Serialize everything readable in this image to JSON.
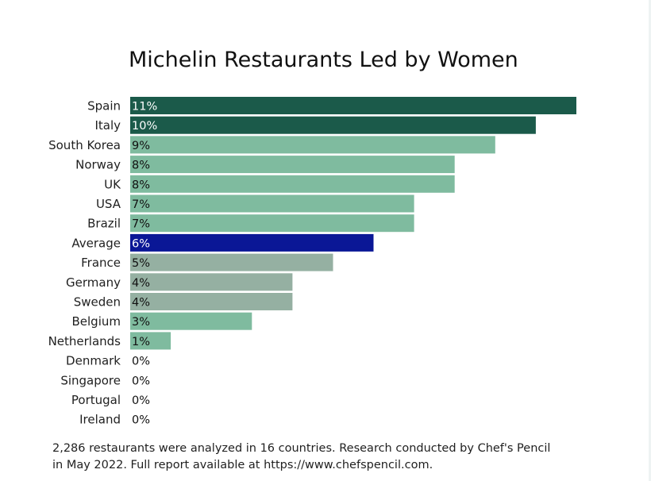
{
  "colors": {
    "leader": "#1b5a4a",
    "country": "#7fbb9f",
    "europe_mid": "#95b0a2",
    "average": "#0a1796",
    "label_dark": "#111111",
    "label_light": "#ffffff"
  },
  "chart_data": {
    "type": "bar",
    "orientation": "horizontal",
    "title": "Michelin Restaurants Led by Women",
    "xlabel": "",
    "ylabel": "",
    "xlim": [
      0,
      11
    ],
    "grid": false,
    "legend": "none",
    "categories": [
      "Spain",
      "Italy",
      "South Korea",
      "Norway",
      "UK",
      "USA",
      "Brazil",
      "Average",
      "France",
      "Germany",
      "Sweden",
      "Belgium",
      "Netherlands",
      "Denmark",
      "Singapore",
      "Portugal",
      "Ireland"
    ],
    "values": [
      11,
      10,
      9,
      8,
      8,
      7,
      7,
      6,
      5,
      4,
      4,
      3,
      1,
      0,
      0,
      0,
      0
    ],
    "value_labels": [
      "11%",
      "10%",
      "9%",
      "8%",
      "8%",
      "7%",
      "7%",
      "6%",
      "5%",
      "4%",
      "4%",
      "3%",
      "1%",
      "0%",
      "0%",
      "0%",
      "0%"
    ],
    "bar_colors": [
      "#1b5a4a",
      "#1b5a4a",
      "#7fbb9f",
      "#7fbb9f",
      "#7fbb9f",
      "#7fbb9f",
      "#7fbb9f",
      "#0a1796",
      "#95b0a2",
      "#95b0a2",
      "#95b0a2",
      "#7fbb9f",
      "#7fbb9f",
      "#7fbb9f",
      "#7fbb9f",
      "#7fbb9f",
      "#7fbb9f"
    ],
    "label_colors": [
      "#ffffff",
      "#ffffff",
      "#111111",
      "#111111",
      "#111111",
      "#111111",
      "#111111",
      "#ffffff",
      "#111111",
      "#111111",
      "#111111",
      "#111111",
      "#111111",
      "#111111",
      "#111111",
      "#111111",
      "#111111"
    ]
  },
  "footnote": "2,286 restaurants were analyzed in 16 countries. Research conducted by Chef's Pencil in May 2022. Full report available at https://www.chefspencil.com."
}
